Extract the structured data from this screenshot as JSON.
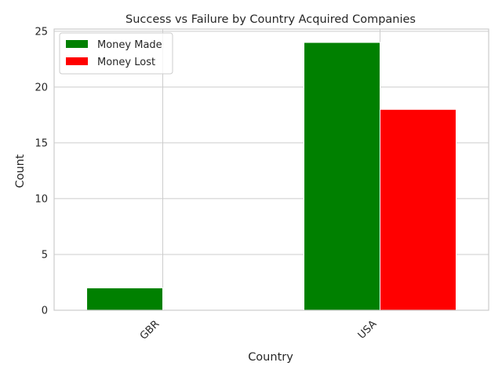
{
  "chart_data": {
    "type": "bar",
    "title": "Success vs Failure by Country Acquired Companies",
    "xlabel": "Country",
    "ylabel": "Count",
    "categories": [
      "GBR",
      "USA"
    ],
    "series": [
      {
        "name": "Money Made",
        "values": [
          2,
          24
        ],
        "color": "#008000"
      },
      {
        "name": "Money Lost",
        "values": [
          0,
          18
        ],
        "color": "#ff0000"
      }
    ],
    "ylim": [
      0,
      25.2
    ],
    "yticks": [
      0,
      5,
      10,
      15,
      20,
      25
    ],
    "grid": true,
    "legend_position": "top-left",
    "xtick_rotation": 45
  }
}
